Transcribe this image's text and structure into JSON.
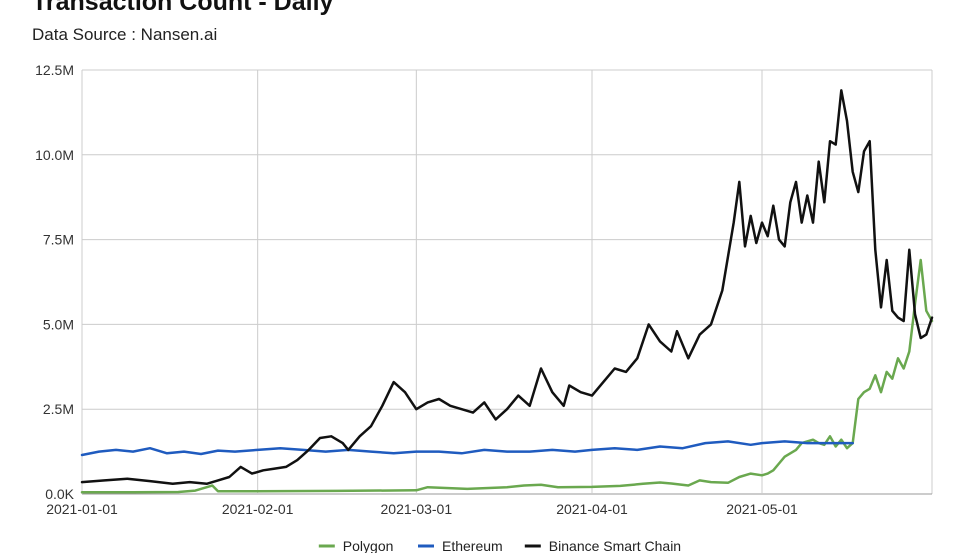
{
  "chart_data": {
    "type": "line",
    "title": "Transaction Count - Daily",
    "subtitle": "Data Source : Nansen.ai",
    "xlabel": "",
    "ylabel": "",
    "x_range": [
      "2021-01-01",
      "2021-05-31"
    ],
    "x_ticks": [
      "2021-01-01",
      "2021-02-01",
      "2021-03-01",
      "2021-04-01",
      "2021-05-01"
    ],
    "ylim": [
      0,
      12500000
    ],
    "y_ticks": [
      {
        "value": 0,
        "label": "0.0K"
      },
      {
        "value": 2500000,
        "label": "2.5M"
      },
      {
        "value": 5000000,
        "label": "5.0M"
      },
      {
        "value": 7500000,
        "label": "7.5M"
      },
      {
        "value": 10000000,
        "label": "10.0M"
      },
      {
        "value": 12500000,
        "label": "12.5M"
      }
    ],
    "grid": true,
    "legend_position": "bottom",
    "series": [
      {
        "name": "Polygon",
        "color": "#6aa84f",
        "points": [
          [
            "2021-01-01",
            50000
          ],
          [
            "2021-01-10",
            50000
          ],
          [
            "2021-01-18",
            60000
          ],
          [
            "2021-01-21",
            100000
          ],
          [
            "2021-01-23",
            200000
          ],
          [
            "2021-01-24",
            250000
          ],
          [
            "2021-01-25",
            80000
          ],
          [
            "2021-02-01",
            80000
          ],
          [
            "2021-02-15",
            90000
          ],
          [
            "2021-03-01",
            110000
          ],
          [
            "2021-03-03",
            200000
          ],
          [
            "2021-03-10",
            150000
          ],
          [
            "2021-03-17",
            200000
          ],
          [
            "2021-03-20",
            250000
          ],
          [
            "2021-03-23",
            270000
          ],
          [
            "2021-03-26",
            200000
          ],
          [
            "2021-04-01",
            210000
          ],
          [
            "2021-04-06",
            240000
          ],
          [
            "2021-04-10",
            300000
          ],
          [
            "2021-04-13",
            340000
          ],
          [
            "2021-04-15",
            310000
          ],
          [
            "2021-04-18",
            250000
          ],
          [
            "2021-04-20",
            400000
          ],
          [
            "2021-04-22",
            350000
          ],
          [
            "2021-04-25",
            330000
          ],
          [
            "2021-04-27",
            500000
          ],
          [
            "2021-04-29",
            600000
          ],
          [
            "2021-05-01",
            550000
          ],
          [
            "2021-05-02",
            600000
          ],
          [
            "2021-05-03",
            700000
          ],
          [
            "2021-05-04",
            900000
          ],
          [
            "2021-05-05",
            1100000
          ],
          [
            "2021-05-07",
            1300000
          ],
          [
            "2021-05-08",
            1500000
          ],
          [
            "2021-05-10",
            1600000
          ],
          [
            "2021-05-11",
            1500000
          ],
          [
            "2021-05-12",
            1450000
          ],
          [
            "2021-05-13",
            1700000
          ],
          [
            "2021-05-14",
            1400000
          ],
          [
            "2021-05-15",
            1600000
          ],
          [
            "2021-05-16",
            1350000
          ],
          [
            "2021-05-17",
            1500000
          ],
          [
            "2021-05-18",
            2800000
          ],
          [
            "2021-05-19",
            3000000
          ],
          [
            "2021-05-20",
            3100000
          ],
          [
            "2021-05-21",
            3500000
          ],
          [
            "2021-05-22",
            3000000
          ],
          [
            "2021-05-23",
            3600000
          ],
          [
            "2021-05-24",
            3400000
          ],
          [
            "2021-05-25",
            4000000
          ],
          [
            "2021-05-26",
            3700000
          ],
          [
            "2021-05-27",
            4200000
          ],
          [
            "2021-05-28",
            5600000
          ],
          [
            "2021-05-29",
            6900000
          ],
          [
            "2021-05-30",
            5400000
          ],
          [
            "2021-05-31",
            5100000
          ]
        ]
      },
      {
        "name": "Ethereum",
        "color": "#1f5bbf",
        "points": [
          [
            "2021-01-01",
            1150000
          ],
          [
            "2021-01-04",
            1250000
          ],
          [
            "2021-01-07",
            1300000
          ],
          [
            "2021-01-10",
            1250000
          ],
          [
            "2021-01-13",
            1350000
          ],
          [
            "2021-01-16",
            1200000
          ],
          [
            "2021-01-19",
            1250000
          ],
          [
            "2021-01-22",
            1180000
          ],
          [
            "2021-01-25",
            1280000
          ],
          [
            "2021-01-28",
            1250000
          ],
          [
            "2021-02-01",
            1300000
          ],
          [
            "2021-02-05",
            1350000
          ],
          [
            "2021-02-09",
            1300000
          ],
          [
            "2021-02-13",
            1250000
          ],
          [
            "2021-02-17",
            1300000
          ],
          [
            "2021-02-21",
            1250000
          ],
          [
            "2021-02-25",
            1200000
          ],
          [
            "2021-03-01",
            1250000
          ],
          [
            "2021-03-05",
            1250000
          ],
          [
            "2021-03-09",
            1200000
          ],
          [
            "2021-03-13",
            1300000
          ],
          [
            "2021-03-17",
            1250000
          ],
          [
            "2021-03-21",
            1250000
          ],
          [
            "2021-03-25",
            1300000
          ],
          [
            "2021-03-29",
            1250000
          ],
          [
            "2021-04-01",
            1300000
          ],
          [
            "2021-04-05",
            1350000
          ],
          [
            "2021-04-09",
            1300000
          ],
          [
            "2021-04-13",
            1400000
          ],
          [
            "2021-04-17",
            1350000
          ],
          [
            "2021-04-21",
            1500000
          ],
          [
            "2021-04-25",
            1550000
          ],
          [
            "2021-04-29",
            1450000
          ],
          [
            "2021-05-01",
            1500000
          ],
          [
            "2021-05-05",
            1550000
          ],
          [
            "2021-05-09",
            1500000
          ],
          [
            "2021-05-13",
            1500000
          ],
          [
            "2021-05-17",
            1500000
          ]
        ]
      },
      {
        "name": "Binance Smart Chain",
        "color": "#111111",
        "points": [
          [
            "2021-01-01",
            350000
          ],
          [
            "2021-01-05",
            400000
          ],
          [
            "2021-01-09",
            450000
          ],
          [
            "2021-01-13",
            380000
          ],
          [
            "2021-01-17",
            300000
          ],
          [
            "2021-01-20",
            350000
          ],
          [
            "2021-01-23",
            300000
          ],
          [
            "2021-01-25",
            400000
          ],
          [
            "2021-01-27",
            500000
          ],
          [
            "2021-01-29",
            800000
          ],
          [
            "2021-01-31",
            600000
          ],
          [
            "2021-02-02",
            700000
          ],
          [
            "2021-02-04",
            750000
          ],
          [
            "2021-02-06",
            800000
          ],
          [
            "2021-02-08",
            1000000
          ],
          [
            "2021-02-10",
            1300000
          ],
          [
            "2021-02-12",
            1650000
          ],
          [
            "2021-02-14",
            1700000
          ],
          [
            "2021-02-16",
            1500000
          ],
          [
            "2021-02-17",
            1300000
          ],
          [
            "2021-02-19",
            1700000
          ],
          [
            "2021-02-21",
            2000000
          ],
          [
            "2021-02-23",
            2600000
          ],
          [
            "2021-02-25",
            3300000
          ],
          [
            "2021-02-27",
            3000000
          ],
          [
            "2021-03-01",
            2500000
          ],
          [
            "2021-03-03",
            2700000
          ],
          [
            "2021-03-05",
            2800000
          ],
          [
            "2021-03-07",
            2600000
          ],
          [
            "2021-03-09",
            2500000
          ],
          [
            "2021-03-11",
            2400000
          ],
          [
            "2021-03-13",
            2700000
          ],
          [
            "2021-03-15",
            2200000
          ],
          [
            "2021-03-17",
            2500000
          ],
          [
            "2021-03-19",
            2900000
          ],
          [
            "2021-03-21",
            2600000
          ],
          [
            "2021-03-23",
            3700000
          ],
          [
            "2021-03-25",
            3000000
          ],
          [
            "2021-03-27",
            2600000
          ],
          [
            "2021-03-28",
            3200000
          ],
          [
            "2021-03-30",
            3000000
          ],
          [
            "2021-04-01",
            2900000
          ],
          [
            "2021-04-03",
            3300000
          ],
          [
            "2021-04-05",
            3700000
          ],
          [
            "2021-04-07",
            3600000
          ],
          [
            "2021-04-09",
            4000000
          ],
          [
            "2021-04-11",
            5000000
          ],
          [
            "2021-04-13",
            4500000
          ],
          [
            "2021-04-15",
            4200000
          ],
          [
            "2021-04-16",
            4800000
          ],
          [
            "2021-04-18",
            4000000
          ],
          [
            "2021-04-20",
            4700000
          ],
          [
            "2021-04-22",
            5000000
          ],
          [
            "2021-04-24",
            6000000
          ],
          [
            "2021-04-26",
            8000000
          ],
          [
            "2021-04-27",
            9200000
          ],
          [
            "2021-04-28",
            7300000
          ],
          [
            "2021-04-29",
            8200000
          ],
          [
            "2021-04-30",
            7400000
          ],
          [
            "2021-05-01",
            8000000
          ],
          [
            "2021-05-02",
            7600000
          ],
          [
            "2021-05-03",
            8500000
          ],
          [
            "2021-05-04",
            7500000
          ],
          [
            "2021-05-05",
            7300000
          ],
          [
            "2021-05-06",
            8600000
          ],
          [
            "2021-05-07",
            9200000
          ],
          [
            "2021-05-08",
            8000000
          ],
          [
            "2021-05-09",
            8800000
          ],
          [
            "2021-05-10",
            8000000
          ],
          [
            "2021-05-11",
            9800000
          ],
          [
            "2021-05-12",
            8600000
          ],
          [
            "2021-05-13",
            10400000
          ],
          [
            "2021-05-14",
            10300000
          ],
          [
            "2021-05-15",
            11900000
          ],
          [
            "2021-05-16",
            11000000
          ],
          [
            "2021-05-17",
            9500000
          ],
          [
            "2021-05-18",
            8900000
          ],
          [
            "2021-05-19",
            10100000
          ],
          [
            "2021-05-20",
            10400000
          ],
          [
            "2021-05-21",
            7200000
          ],
          [
            "2021-05-22",
            5500000
          ],
          [
            "2021-05-23",
            6900000
          ],
          [
            "2021-05-24",
            5400000
          ],
          [
            "2021-05-25",
            5200000
          ],
          [
            "2021-05-26",
            5100000
          ],
          [
            "2021-05-27",
            7200000
          ],
          [
            "2021-05-28",
            5300000
          ],
          [
            "2021-05-29",
            4600000
          ],
          [
            "2021-05-30",
            4700000
          ],
          [
            "2021-05-31",
            5200000
          ]
        ]
      }
    ]
  }
}
